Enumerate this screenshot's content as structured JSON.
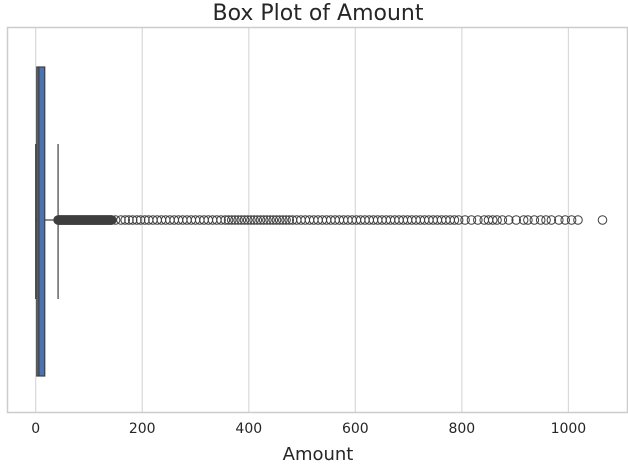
{
  "chart_data": {
    "type": "boxplot",
    "title": "Box Plot of Amount",
    "xlabel": "Amount",
    "ylabel": "",
    "xlim": [
      -52,
      1110
    ],
    "xticks": [
      0,
      200,
      400,
      600,
      800,
      1000
    ],
    "tick_labels": [
      "0",
      "200",
      "400",
      "600",
      "800",
      "1000"
    ],
    "grid": true,
    "orientation": "horizontal",
    "box": {
      "whisker_low": 0,
      "q1": 2,
      "median": 6,
      "q3": 17,
      "whisker_high": 42
    },
    "outlier_range": [
      42,
      143
    ],
    "outliers": [
      150,
      160,
      168,
      175,
      182,
      190,
      197,
      205,
      212,
      220,
      228,
      236,
      244,
      252,
      260,
      268,
      276,
      284,
      292,
      300,
      308,
      316,
      324,
      332,
      340,
      348,
      356,
      362,
      368,
      374,
      380,
      386,
      392,
      398,
      404,
      410,
      416,
      422,
      428,
      434,
      440,
      446,
      452,
      458,
      464,
      470,
      476,
      482,
      490,
      498,
      506,
      514,
      522,
      530,
      538,
      546,
      554,
      562,
      570,
      578,
      586,
      594,
      602,
      610,
      618,
      626,
      634,
      642,
      650,
      658,
      666,
      674,
      682,
      690,
      698,
      706,
      714,
      722,
      730,
      738,
      746,
      754,
      762,
      770,
      778,
      786,
      794,
      806,
      818,
      830,
      842,
      850,
      858,
      866,
      876,
      888,
      902,
      916,
      924,
      936,
      948,
      958,
      968,
      982,
      994,
      1006,
      1018,
      1064
    ],
    "colors": {
      "box": "#4c72b0",
      "grid": "#d9d9d9",
      "frame": "#cccccc",
      "line": "#3f3f3f"
    }
  }
}
